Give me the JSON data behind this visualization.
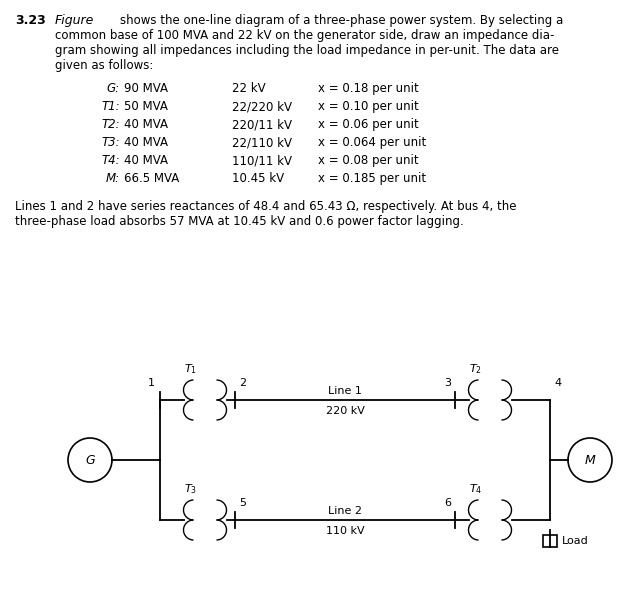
{
  "title_num": "3.23",
  "title_word": "Figure",
  "title_gap": "        ",
  "title_rest": "shows the one-line diagram of a three-phase power system. By selecting a",
  "title_line2": "common base of 100 MVA and 22 kV on the generator side, draw an impedance dia-",
  "title_line3": "gram showing all impedances including the load impedance in per-unit. The data are",
  "title_line4": "given as follows:",
  "table_rows": [
    {
      "label": "G:",
      "mva": "90 MVA",
      "kv": "22 kV",
      "x": "x = 0.18 per unit"
    },
    {
      "label": "T1:",
      "mva": "50 MVA",
      "kv": "22/220 kV",
      "x": "x = 0.10 per unit"
    },
    {
      "label": "T2:",
      "mva": "40 MVA",
      "kv": "220/11 kV",
      "x": "x = 0.06 per unit"
    },
    {
      "label": "T3:",
      "mva": "40 MVA",
      "kv": "22/110 kV",
      "x": "x = 0.064 per unit"
    },
    {
      "label": "T4:",
      "mva": "40 MVA",
      "kv": "110/11 kV",
      "x": "x = 0.08 per unit"
    },
    {
      "label": "M:",
      "mva": "66.5 MVA",
      "kv": "10.45 kV",
      "x": "x = 0.185 per unit"
    }
  ],
  "footer_line1": "Lines 1 and 2 have series reactances of 48.4 and 65.43 Ω, respectively. At bus 4, the",
  "footer_line2": "three-phase load absorbs 57 MVA at 10.45 kV and 0.6 power factor lagging.",
  "bg_color": "#ffffff",
  "text_color": "#000000"
}
